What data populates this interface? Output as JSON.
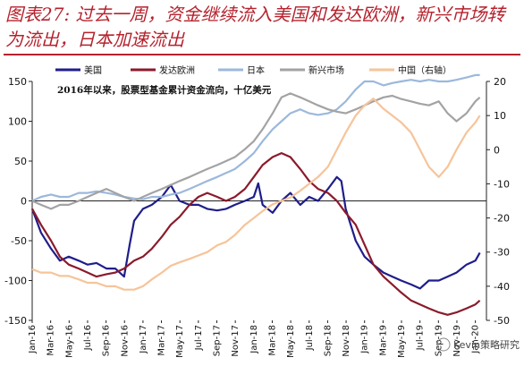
{
  "title": "图表27: 过去一周，资金继续流入美国和发达欧洲，新兴市场转为流出，日本加速流出",
  "watermark": "Kevin策略研究",
  "chart_data": {
    "type": "line",
    "annotation": "2016年以来，股票型基金累计资金流向，十亿美元",
    "x_tick_labels": [
      "Jan-16",
      "Mar-16",
      "May-16",
      "Jul-16",
      "Sep-16",
      "Nov-16",
      "Jan-17",
      "Mar-17",
      "May-17",
      "Jul-17",
      "Sep-17",
      "Nov-17",
      "Jan-18",
      "Mar-18",
      "May-18",
      "Jul-18",
      "Sep-18",
      "Nov-18",
      "Jan-19",
      "Mar-19",
      "May-19",
      "Jul-19",
      "Sep-19",
      "Nov-19",
      "Jan-20"
    ],
    "x_range": [
      "2016-01",
      "2020-01"
    ],
    "ylim_left": [
      -150,
      150
    ],
    "yticks_left": [
      150,
      100,
      50,
      0,
      -50,
      -100,
      -150
    ],
    "ylim_right": [
      -50,
      20
    ],
    "yticks_right": [
      20,
      10,
      0,
      -10,
      -20,
      -30,
      -40,
      -50
    ],
    "grid": false,
    "legend_position": "top",
    "series": [
      {
        "name": "美国",
        "axis": "left",
        "color": "#1f1e8a",
        "x": [
          2016.0,
          2016.08,
          2016.17,
          2016.25,
          2016.33,
          2016.42,
          2016.5,
          2016.58,
          2016.67,
          2016.75,
          2016.83,
          2016.88,
          2016.92,
          2017.0,
          2017.08,
          2017.17,
          2017.25,
          2017.33,
          2017.42,
          2017.5,
          2017.58,
          2017.67,
          2017.75,
          2017.83,
          2017.92,
          2018.0,
          2018.04,
          2018.08,
          2018.17,
          2018.25,
          2018.33,
          2018.42,
          2018.5,
          2018.58,
          2018.67,
          2018.75,
          2018.79,
          2018.83,
          2018.92,
          2019.0,
          2019.08,
          2019.17,
          2019.25,
          2019.33,
          2019.42,
          2019.5,
          2019.58,
          2019.67,
          2019.75,
          2019.83,
          2019.92,
          2020.0,
          2020.04
        ],
        "y": [
          -10,
          -40,
          -60,
          -75,
          -70,
          -75,
          -80,
          -78,
          -85,
          -85,
          -95,
          -55,
          -25,
          -10,
          -5,
          5,
          20,
          0,
          -5,
          -5,
          -10,
          -12,
          -10,
          -5,
          0,
          5,
          22,
          -5,
          -15,
          0,
          10,
          -5,
          5,
          0,
          15,
          30,
          25,
          -10,
          -50,
          -70,
          -80,
          -90,
          -95,
          -100,
          -105,
          -110,
          -100,
          -100,
          -95,
          -90,
          -80,
          -75,
          -65
        ]
      },
      {
        "name": "发达欧洲",
        "axis": "left",
        "color": "#8b1a2b",
        "x": [
          2016.0,
          2016.08,
          2016.17,
          2016.25,
          2016.33,
          2016.42,
          2016.5,
          2016.58,
          2016.67,
          2016.75,
          2016.83,
          2016.92,
          2017.0,
          2017.08,
          2017.17,
          2017.25,
          2017.33,
          2017.42,
          2017.5,
          2017.58,
          2017.67,
          2017.75,
          2017.83,
          2017.92,
          2018.0,
          2018.08,
          2018.17,
          2018.25,
          2018.33,
          2018.42,
          2018.5,
          2018.58,
          2018.67,
          2018.75,
          2018.83,
          2018.92,
          2019.0,
          2019.08,
          2019.17,
          2019.25,
          2019.33,
          2019.42,
          2019.5,
          2019.58,
          2019.67,
          2019.75,
          2019.83,
          2019.92,
          2020.0,
          2020.04
        ],
        "y": [
          -10,
          -30,
          -50,
          -70,
          -80,
          -85,
          -90,
          -95,
          -92,
          -90,
          -85,
          -75,
          -70,
          -60,
          -45,
          -30,
          -20,
          -5,
          5,
          10,
          5,
          0,
          5,
          15,
          30,
          45,
          55,
          60,
          55,
          40,
          25,
          15,
          10,
          0,
          -15,
          -30,
          -55,
          -80,
          -95,
          -105,
          -115,
          -125,
          -130,
          -135,
          -140,
          -143,
          -140,
          -135,
          -130,
          -125
        ]
      },
      {
        "name": "日本",
        "axis": "left",
        "color": "#9cb8dc",
        "x": [
          2016.0,
          2016.08,
          2016.17,
          2016.25,
          2016.33,
          2016.42,
          2016.5,
          2016.58,
          2016.67,
          2016.75,
          2016.83,
          2016.92,
          2017.0,
          2017.08,
          2017.17,
          2017.25,
          2017.33,
          2017.42,
          2017.5,
          2017.58,
          2017.67,
          2017.75,
          2017.83,
          2017.92,
          2018.0,
          2018.08,
          2018.17,
          2018.25,
          2018.33,
          2018.42,
          2018.5,
          2018.58,
          2018.67,
          2018.75,
          2018.83,
          2018.92,
          2019.0,
          2019.08,
          2019.17,
          2019.25,
          2019.33,
          2019.42,
          2019.5,
          2019.58,
          2019.67,
          2019.75,
          2019.83,
          2019.92,
          2020.0,
          2020.04
        ],
        "y": [
          0,
          5,
          8,
          5,
          5,
          10,
          10,
          12,
          10,
          8,
          5,
          3,
          2,
          5,
          5,
          8,
          10,
          15,
          20,
          25,
          30,
          35,
          40,
          50,
          60,
          75,
          90,
          100,
          110,
          115,
          110,
          108,
          110,
          115,
          125,
          140,
          150,
          150,
          145,
          148,
          150,
          152,
          150,
          152,
          150,
          150,
          152,
          155,
          158,
          158
        ]
      },
      {
        "name": "新兴市场",
        "axis": "left",
        "color": "#a3a3a3",
        "x": [
          2016.0,
          2016.08,
          2016.17,
          2016.25,
          2016.33,
          2016.42,
          2016.5,
          2016.58,
          2016.67,
          2016.75,
          2016.83,
          2016.92,
          2017.0,
          2017.08,
          2017.17,
          2017.25,
          2017.33,
          2017.42,
          2017.5,
          2017.58,
          2017.67,
          2017.75,
          2017.83,
          2017.92,
          2018.0,
          2018.08,
          2018.17,
          2018.25,
          2018.33,
          2018.42,
          2018.5,
          2018.58,
          2018.67,
          2018.75,
          2018.83,
          2018.92,
          2019.0,
          2019.08,
          2019.17,
          2019.25,
          2019.33,
          2019.42,
          2019.5,
          2019.58,
          2019.67,
          2019.75,
          2019.83,
          2019.92,
          2020.0,
          2020.04
        ],
        "y": [
          0,
          -5,
          -10,
          -5,
          -5,
          0,
          5,
          10,
          15,
          10,
          5,
          0,
          5,
          10,
          15,
          20,
          25,
          30,
          35,
          40,
          45,
          50,
          55,
          65,
          75,
          90,
          110,
          130,
          135,
          130,
          125,
          120,
          115,
          112,
          110,
          115,
          120,
          125,
          130,
          132,
          128,
          125,
          122,
          120,
          125,
          110,
          100,
          110,
          125,
          130
        ]
      },
      {
        "name": "中国（右轴）",
        "axis": "right",
        "color": "#f6c49a",
        "x": [
          2016.0,
          2016.08,
          2016.17,
          2016.25,
          2016.33,
          2016.42,
          2016.5,
          2016.58,
          2016.67,
          2016.75,
          2016.83,
          2016.92,
          2017.0,
          2017.08,
          2017.17,
          2017.25,
          2017.33,
          2017.42,
          2017.5,
          2017.58,
          2017.67,
          2017.75,
          2017.83,
          2017.92,
          2018.0,
          2018.08,
          2018.17,
          2018.25,
          2018.33,
          2018.42,
          2018.5,
          2018.58,
          2018.67,
          2018.75,
          2018.83,
          2018.92,
          2019.0,
          2019.08,
          2019.17,
          2019.25,
          2019.33,
          2019.42,
          2019.5,
          2019.58,
          2019.67,
          2019.75,
          2019.83,
          2019.92,
          2020.0,
          2020.04
        ],
        "y": [
          -35,
          -36,
          -36,
          -37,
          -37,
          -38,
          -39,
          -39,
          -40,
          -40,
          -41,
          -41,
          -40,
          -38,
          -36,
          -34,
          -33,
          -32,
          -31,
          -30,
          -28,
          -27,
          -25,
          -22,
          -20,
          -18,
          -16,
          -15,
          -14,
          -12,
          -10,
          -8,
          -5,
          0,
          5,
          10,
          13,
          15,
          12,
          10,
          8,
          5,
          0,
          -5,
          -8,
          -5,
          0,
          5,
          8,
          10
        ]
      }
    ]
  }
}
